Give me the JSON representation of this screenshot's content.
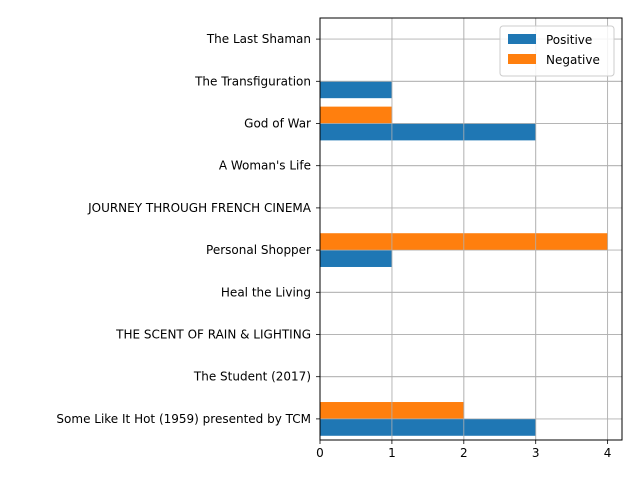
{
  "chart_data": {
    "type": "bar",
    "orientation": "horizontal",
    "categories": [
      "Some Like It Hot (1959) presented by TCM",
      "The Student (2017)",
      "THE SCENT OF RAIN & LIGHTING",
      "Heal the Living",
      "Personal Shopper",
      "JOURNEY THROUGH FRENCH CINEMA",
      "A Woman's Life",
      "God of War",
      "The Transfiguration",
      "The Last Shaman"
    ],
    "series": [
      {
        "name": "Positive",
        "color": "#1f77b4",
        "values": [
          3,
          0,
          0,
          0,
          1,
          0,
          0,
          3,
          1,
          0
        ]
      },
      {
        "name": "Negative",
        "color": "#ff7f0e",
        "values": [
          2,
          0,
          0,
          0,
          4,
          0,
          0,
          1,
          0,
          0
        ]
      }
    ],
    "xlim": [
      0,
      4.2
    ],
    "xticks": [
      "0",
      "1",
      "2",
      "3",
      "4"
    ],
    "grid": true,
    "legend_position": "top-right",
    "title": "",
    "xlabel": "",
    "ylabel": ""
  }
}
